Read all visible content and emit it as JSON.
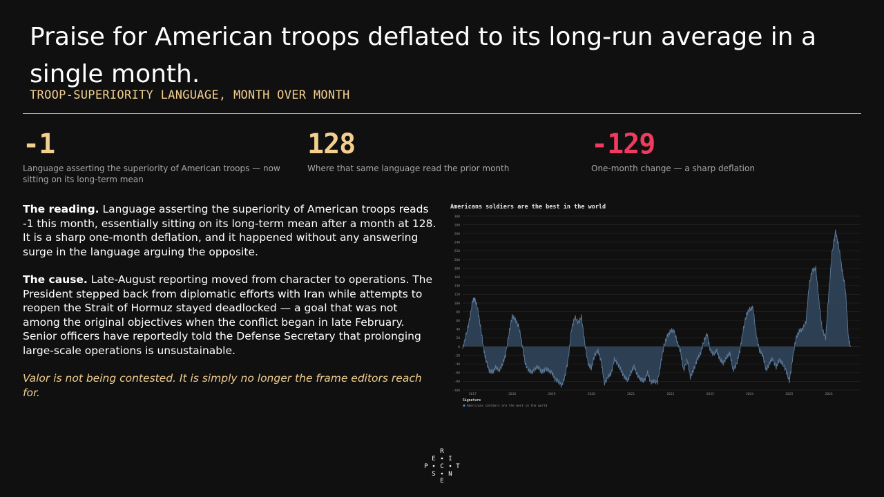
{
  "header": {
    "title": "Praise for American troops deflated to its long-run average in a single month.",
    "subtitle": "TROOP-SUPERIORITY LANGUAGE, MONTH OVER MONTH"
  },
  "stats": [
    {
      "value": "-1",
      "label": "Language asserting the superiority of American troops — now sitting on its long-term mean",
      "color": "#f3cf8f"
    },
    {
      "value": "128",
      "label": "Where that same language read the prior month",
      "color": "#f3cf8f"
    },
    {
      "value": "-129",
      "label": "One-month change — a sharp deflation",
      "color": "#ee3b5e"
    }
  ],
  "body": {
    "reading_lead": "The reading.",
    "reading_text": " Language asserting the superiority of American troops reads -1 this month, essentially sitting on its long-term mean after a month at 128. It is a sharp one-month deflation, and it happened without any answering surge in the language arguing the opposite.",
    "cause_lead": "The cause.",
    "cause_text": " Late-August reporting moved from character to operations. The President stepped back from diplomatic efforts with Iran while attempts to reopen the Strait of Hormuz stayed deadlocked — a goal that was not among the original objectives when the conflict began in late February. Senior officers have reportedly told the Defense Secretary that prolonging large-scale operations is unsustainable.",
    "closing": "Valor is not being contested. It is simply no longer the frame editors reach for."
  },
  "logo": {
    "letters": [
      "R",
      "E",
      "I",
      "P",
      "C",
      "T",
      "S",
      "N",
      "E"
    ]
  },
  "colors": {
    "background": "#101010",
    "accent_gold": "#f3cf8f",
    "accent_red": "#ee3b5e",
    "rule": "#7fc9b2",
    "series_line": "#5d7b9c",
    "series_fill": "#2f4256"
  },
  "chart_data": {
    "type": "area",
    "title": "Americans soldiers are the best in the world",
    "ylim": [
      -100,
      300
    ],
    "yticks": [
      300,
      280,
      260,
      240,
      220,
      200,
      180,
      160,
      140,
      120,
      100,
      80,
      60,
      40,
      20,
      0,
      -20,
      -40,
      -60,
      -80,
      -100
    ],
    "xlim": [
      2016.75,
      2026.8
    ],
    "xticks": [
      "2017",
      "2018",
      "2019",
      "2020",
      "2021",
      "2022",
      "2023",
      "2024",
      "2025",
      "2026"
    ],
    "grid": true,
    "legend": {
      "title": "Signature",
      "position": "bottom-left"
    },
    "series": [
      {
        "name": "Americans soldiers are the best in the world",
        "points": [
          [
            2016.75,
            -5
          ],
          [
            2016.83,
            25
          ],
          [
            2016.92,
            60
          ],
          [
            2017.0,
            105
          ],
          [
            2017.05,
            110
          ],
          [
            2017.12,
            90
          ],
          [
            2017.2,
            45
          ],
          [
            2017.28,
            -5
          ],
          [
            2017.33,
            -30
          ],
          [
            2017.42,
            -55
          ],
          [
            2017.5,
            -60
          ],
          [
            2017.58,
            -48
          ],
          [
            2017.67,
            -55
          ],
          [
            2017.75,
            -42
          ],
          [
            2017.83,
            -20
          ],
          [
            2017.92,
            30
          ],
          [
            2018.0,
            70
          ],
          [
            2018.08,
            62
          ],
          [
            2018.17,
            45
          ],
          [
            2018.25,
            5
          ],
          [
            2018.33,
            -40
          ],
          [
            2018.42,
            -55
          ],
          [
            2018.5,
            -60
          ],
          [
            2018.58,
            -50
          ],
          [
            2018.67,
            -48
          ],
          [
            2018.75,
            -60
          ],
          [
            2018.83,
            -52
          ],
          [
            2018.92,
            -55
          ],
          [
            2019.0,
            -60
          ],
          [
            2019.08,
            -75
          ],
          [
            2019.17,
            -80
          ],
          [
            2019.25,
            -90
          ],
          [
            2019.33,
            -70
          ],
          [
            2019.42,
            -25
          ],
          [
            2019.5,
            40
          ],
          [
            2019.58,
            68
          ],
          [
            2019.67,
            55
          ],
          [
            2019.75,
            68
          ],
          [
            2019.83,
            10
          ],
          [
            2019.92,
            -40
          ],
          [
            2020.0,
            -50
          ],
          [
            2020.08,
            -20
          ],
          [
            2020.17,
            -10
          ],
          [
            2020.25,
            -35
          ],
          [
            2020.33,
            -85
          ],
          [
            2020.42,
            -70
          ],
          [
            2020.5,
            -62
          ],
          [
            2020.58,
            -30
          ],
          [
            2020.67,
            -40
          ],
          [
            2020.75,
            -55
          ],
          [
            2020.83,
            -70
          ],
          [
            2020.92,
            -78
          ],
          [
            2021.0,
            -60
          ],
          [
            2021.08,
            -45
          ],
          [
            2021.17,
            -68
          ],
          [
            2021.25,
            -75
          ],
          [
            2021.33,
            -80
          ],
          [
            2021.42,
            -60
          ],
          [
            2021.5,
            -82
          ],
          [
            2021.58,
            -80
          ],
          [
            2021.67,
            -82
          ],
          [
            2021.75,
            -40
          ],
          [
            2021.83,
            0
          ],
          [
            2021.92,
            25
          ],
          [
            2022.0,
            35
          ],
          [
            2022.08,
            38
          ],
          [
            2022.17,
            10
          ],
          [
            2022.25,
            -10
          ],
          [
            2022.33,
            -55
          ],
          [
            2022.42,
            -30
          ],
          [
            2022.5,
            -70
          ],
          [
            2022.58,
            -55
          ],
          [
            2022.67,
            -30
          ],
          [
            2022.75,
            -18
          ],
          [
            2022.83,
            8
          ],
          [
            2022.92,
            30
          ],
          [
            2023.0,
            -8
          ],
          [
            2023.08,
            -18
          ],
          [
            2023.17,
            -10
          ],
          [
            2023.25,
            -30
          ],
          [
            2023.33,
            -38
          ],
          [
            2023.42,
            -25
          ],
          [
            2023.5,
            -15
          ],
          [
            2023.58,
            -55
          ],
          [
            2023.67,
            -40
          ],
          [
            2023.75,
            -10
          ],
          [
            2023.83,
            35
          ],
          [
            2023.92,
            75
          ],
          [
            2024.0,
            85
          ],
          [
            2024.08,
            90
          ],
          [
            2024.17,
            25
          ],
          [
            2024.25,
            -10
          ],
          [
            2024.33,
            -20
          ],
          [
            2024.42,
            -55
          ],
          [
            2024.5,
            -38
          ],
          [
            2024.58,
            -28
          ],
          [
            2024.67,
            -48
          ],
          [
            2024.75,
            -30
          ],
          [
            2024.83,
            -40
          ],
          [
            2024.92,
            -55
          ],
          [
            2025.0,
            -80
          ],
          [
            2025.08,
            -30
          ],
          [
            2025.17,
            20
          ],
          [
            2025.25,
            35
          ],
          [
            2025.33,
            40
          ],
          [
            2025.42,
            55
          ],
          [
            2025.5,
            140
          ],
          [
            2025.58,
            175
          ],
          [
            2025.67,
            180
          ],
          [
            2025.75,
            105
          ],
          [
            2025.83,
            40
          ],
          [
            2025.92,
            20
          ],
          [
            2026.0,
            125
          ],
          [
            2026.08,
            215
          ],
          [
            2026.17,
            265
          ],
          [
            2026.25,
            230
          ],
          [
            2026.33,
            180
          ],
          [
            2026.42,
            130
          ],
          [
            2026.5,
            15
          ],
          [
            2026.55,
            -1
          ]
        ]
      }
    ]
  }
}
